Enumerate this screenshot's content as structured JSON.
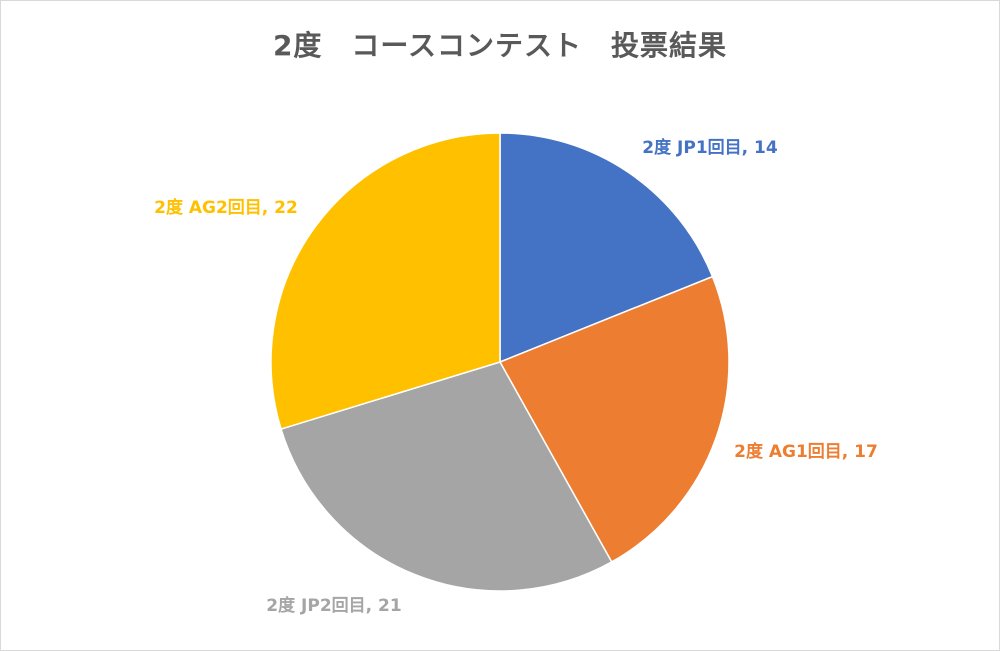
{
  "chart_data": {
    "type": "pie",
    "title": "2度　コースコンテスト　投票結果",
    "start_angle_deg": 0,
    "direction": "clockwise",
    "legend": "none",
    "slices": [
      {
        "label": "2度 JP1回目",
        "value": 14,
        "color": "#4472C4",
        "data_label": "2度 JP1回目, 14"
      },
      {
        "label": "2度 AG1回目",
        "value": 17,
        "color": "#ED7D31",
        "data_label": "2度 AG1回目, 17"
      },
      {
        "label": "2度 JP2回目",
        "value": 21,
        "color": "#A5A5A5",
        "data_label": "2度 JP2回目, 21"
      },
      {
        "label": "2度 AG2回目",
        "value": 22,
        "color": "#FFC000",
        "data_label": "2度 AG2回目, 22"
      }
    ]
  }
}
